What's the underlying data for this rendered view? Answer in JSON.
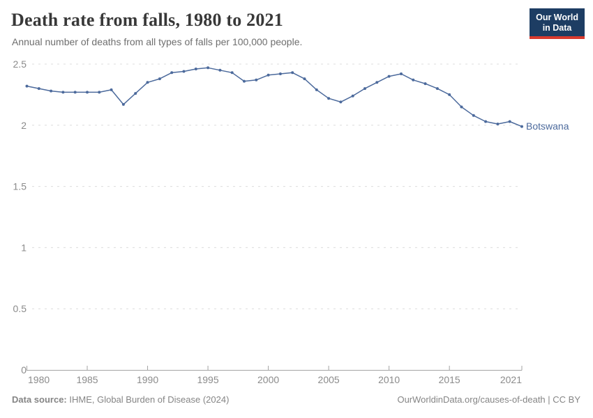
{
  "header": {
    "title": "Death rate from falls, 1980 to 2021",
    "subtitle": "Annual number of deaths from all types of falls per 100,000 people."
  },
  "logo": {
    "line1": "Our World",
    "line2": "in Data"
  },
  "footer": {
    "source_label": "Data source:",
    "source_text": " IHME, Global Burden of Disease (2024)",
    "right_text": "OurWorldinData.org/causes-of-death | CC BY"
  },
  "colors": {
    "series_line": "#4c6a9c",
    "series_label": "#4c6a9c",
    "gridline": "#dcdcdc",
    "axis_line": "#a3a3a3",
    "axis_text": "#8b8b8b",
    "logo_bg": "#1d3d63",
    "logo_accent": "#d93a2e"
  },
  "chart_data": {
    "type": "line",
    "title": "Death rate from falls, 1980 to 2021",
    "subtitle": "Annual number of deaths from all types of falls per 100,000 people.",
    "xlabel": "",
    "ylabel": "",
    "xlim": [
      1980,
      2021
    ],
    "ylim": [
      0,
      2.5
    ],
    "x_ticks": [
      1980,
      1985,
      1990,
      1995,
      2000,
      2005,
      2010,
      2015,
      2021
    ],
    "y_ticks": [
      0,
      0.5,
      1,
      1.5,
      2,
      2.5
    ],
    "grid": "horizontal-dashed",
    "legend_position": "end-of-line-label",
    "series": [
      {
        "name": "Botswana",
        "color": "#4c6a9c",
        "x": [
          1980,
          1981,
          1982,
          1983,
          1984,
          1985,
          1986,
          1987,
          1988,
          1989,
          1990,
          1991,
          1992,
          1993,
          1994,
          1995,
          1996,
          1997,
          1998,
          1999,
          2000,
          2001,
          2002,
          2003,
          2004,
          2005,
          2006,
          2007,
          2008,
          2009,
          2010,
          2011,
          2012,
          2013,
          2014,
          2015,
          2016,
          2017,
          2018,
          2019,
          2020,
          2021
        ],
        "values": [
          2.32,
          2.3,
          2.28,
          2.27,
          2.27,
          2.27,
          2.27,
          2.29,
          2.17,
          2.26,
          2.35,
          2.38,
          2.43,
          2.44,
          2.46,
          2.47,
          2.45,
          2.43,
          2.36,
          2.37,
          2.41,
          2.42,
          2.43,
          2.38,
          2.29,
          2.22,
          2.19,
          2.24,
          2.3,
          2.35,
          2.4,
          2.42,
          2.37,
          2.34,
          2.3,
          2.25,
          2.15,
          2.08,
          2.03,
          2.01,
          2.03,
          1.99
        ]
      }
    ]
  }
}
